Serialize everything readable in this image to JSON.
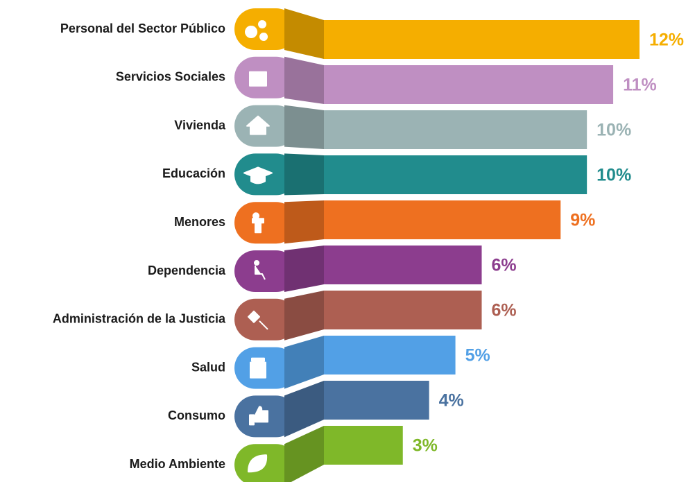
{
  "chart_data": {
    "type": "bar",
    "categories": [
      "Personal del Sector Público",
      "Servicios Sociales",
      "Vivienda",
      "Educación",
      "Menores",
      "Dependencia",
      "Administración de la Justicia",
      "Salud",
      "Consumo",
      "Medio Ambiente"
    ],
    "values": [
      12,
      11,
      10,
      10,
      9,
      6,
      6,
      5,
      4,
      3
    ],
    "value_labels": [
      "12%",
      "11%",
      "10%",
      "10%",
      "9%",
      "6%",
      "6%",
      "5%",
      "4%",
      "3%"
    ],
    "colors": [
      "#f5ae00",
      "#bf8fc2",
      "#9bb3b4",
      "#218c8d",
      "#ee7020",
      "#8c3d8e",
      "#ad5f52",
      "#52a0e6",
      "#4a72a0",
      "#7fb829"
    ]
  }
}
